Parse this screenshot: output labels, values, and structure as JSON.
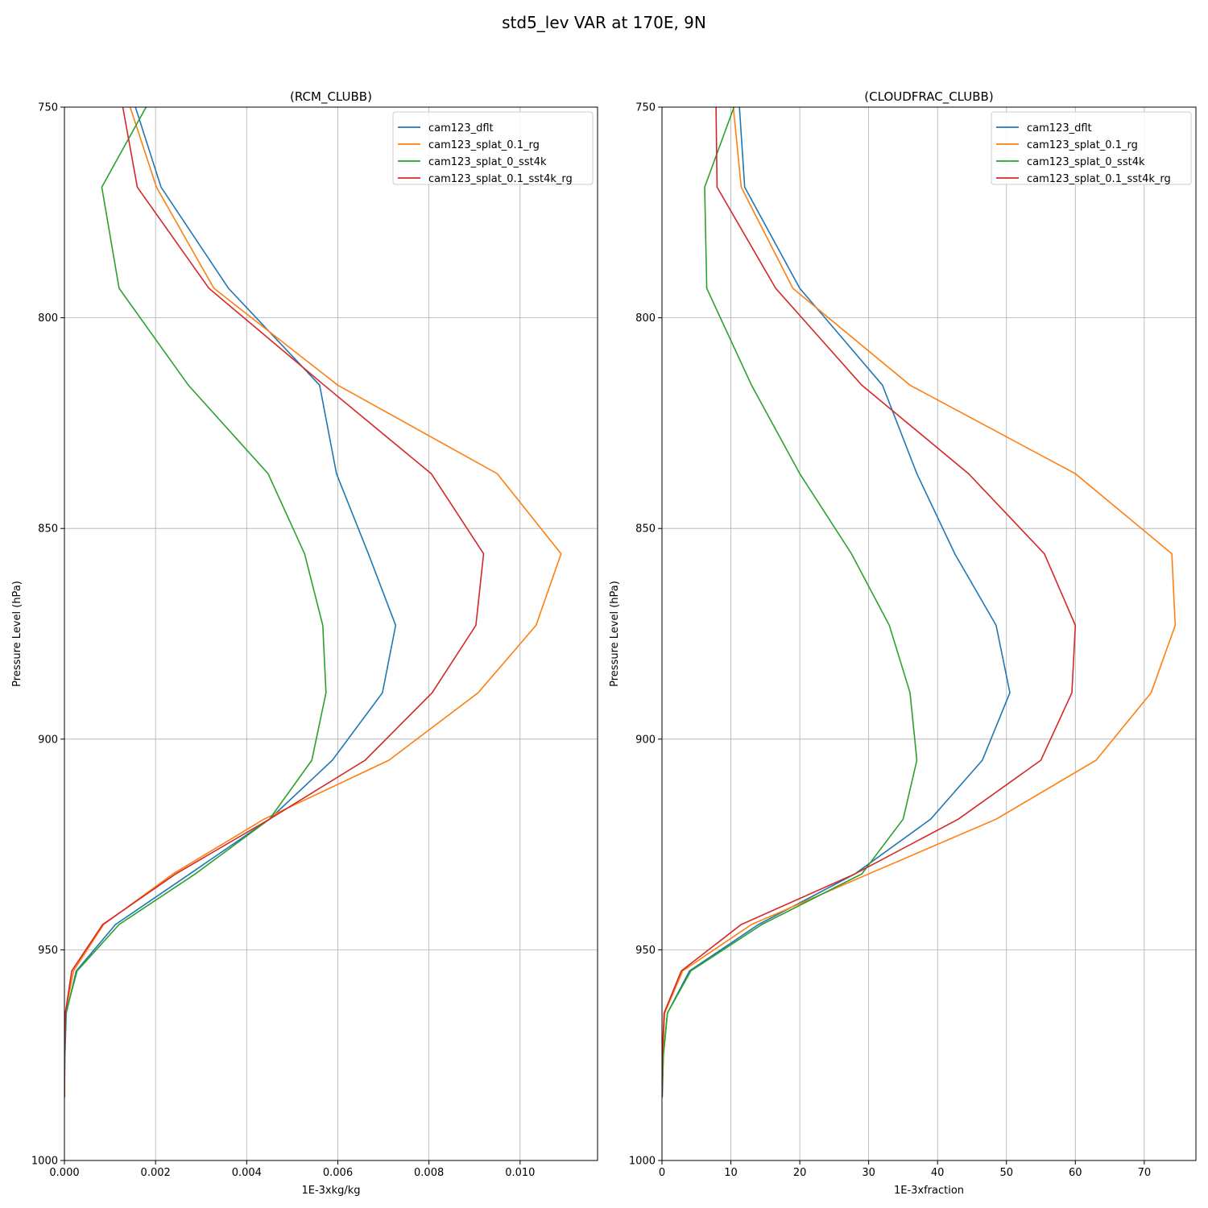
{
  "title": "std5_lev VAR at 170E, 9N",
  "series_names": [
    "cam123_dflt",
    "cam123_splat_0.1_rg",
    "cam123_splat_0_sst4k",
    "cam123_splat_0.1_sst4k_rg"
  ],
  "series_colors": [
    "#1f77b4",
    "#ff7f0e",
    "#2ca02c",
    "#d62728"
  ],
  "chart_data": [
    {
      "type": "line",
      "title": "(RCM_CLUBB)",
      "xlabel": "1E-3xkg/kg",
      "ylabel": "Pressure Level (hPa)",
      "xlim": [
        0,
        0.0117
      ],
      "ylim": [
        1000,
        750
      ],
      "xticks": [
        0,
        0.002,
        0.004,
        0.006,
        0.008,
        0.01
      ],
      "xtick_labels": [
        "0.000",
        "0.002",
        "0.004",
        "0.006",
        "0.008",
        "0.010"
      ],
      "yticks": [
        750,
        800,
        850,
        900,
        950,
        1000
      ],
      "ytick_labels": [
        "750",
        "800",
        "850",
        "900",
        "950",
        "1000"
      ],
      "grid": true,
      "legend_position": "upper right",
      "levels": [
        744,
        769,
        793,
        816,
        837,
        856,
        873,
        889,
        905,
        919,
        932,
        944,
        955,
        965,
        975,
        985
      ],
      "series": [
        {
          "name": "cam123_dflt",
          "x": [
            0.00138,
            0.00212,
            0.0036,
            0.0056,
            0.00597,
            0.00667,
            0.00727,
            0.00698,
            0.00588,
            0.0045,
            0.00275,
            0.00112,
            0.00026,
            4e-05,
            1e-05,
            0.0
          ]
        },
        {
          "name": "cam123_splat_0.1_rg",
          "x": [
            0.00126,
            0.00202,
            0.00328,
            0.006,
            0.0095,
            0.0109,
            0.01035,
            0.00908,
            0.00712,
            0.00438,
            0.00238,
            0.00086,
            0.0002,
            2e-05,
            0.0,
            0.0
          ]
        },
        {
          "name": "cam123_splat_0_sst4k",
          "x": [
            0.0021,
            0.00082,
            0.0012,
            0.00272,
            0.00447,
            0.00527,
            0.00567,
            0.00574,
            0.00543,
            0.0045,
            0.00287,
            0.0012,
            0.00028,
            3e-05,
            0.0,
            0.0
          ]
        },
        {
          "name": "cam123_splat_0.1_sst4k_rg",
          "x": [
            0.00118,
            0.0016,
            0.00317,
            0.0057,
            0.00805,
            0.0092,
            0.00903,
            0.00807,
            0.0066,
            0.0045,
            0.00244,
            0.00084,
            0.00016,
            2e-05,
            0.0,
            0.0
          ]
        }
      ]
    },
    {
      "type": "line",
      "title": "(CLOUDFRAC_CLUBB)",
      "xlabel": "1E-3xfraction",
      "ylabel": "Pressure Level (hPa)",
      "xlim": [
        0,
        77.5
      ],
      "ylim": [
        1000,
        750
      ],
      "xticks": [
        0,
        10,
        20,
        30,
        40,
        50,
        60,
        70
      ],
      "xtick_labels": [
        "0",
        "10",
        "20",
        "30",
        "40",
        "50",
        "60",
        "70"
      ],
      "yticks": [
        750,
        800,
        850,
        900,
        950,
        1000
      ],
      "ytick_labels": [
        "750",
        "800",
        "850",
        "900",
        "950",
        "1000"
      ],
      "grid": true,
      "legend_position": "upper right",
      "levels": [
        744,
        769,
        793,
        816,
        837,
        856,
        873,
        889,
        905,
        919,
        932,
        944,
        955,
        965,
        975,
        985
      ],
      "series": [
        {
          "name": "cam123_dflt",
          "x": [
            11.0,
            12.0,
            20.0,
            32.0,
            37.0,
            42.5,
            48.5,
            50.5,
            46.5,
            39.0,
            28.0,
            14.0,
            4.0,
            0.8,
            0.2,
            0.05
          ]
        },
        {
          "name": "cam123_splat_0.1_rg",
          "x": [
            10.0,
            11.5,
            19.0,
            36.0,
            60.0,
            74.0,
            74.5,
            71.0,
            63.0,
            48.5,
            30.0,
            13.0,
            3.0,
            0.4,
            0.1,
            0.0
          ]
        },
        {
          "name": "cam123_splat_0_sst4k",
          "x": [
            11.8,
            6.2,
            6.5,
            13.0,
            20.0,
            27.5,
            33.0,
            36.0,
            37.0,
            35.0,
            29.0,
            14.5,
            4.2,
            0.8,
            0.2,
            0.0
          ]
        },
        {
          "name": "cam123_splat_0.1_sst4k_rg",
          "x": [
            7.8,
            8.0,
            16.5,
            29.0,
            44.5,
            55.5,
            60.0,
            59.5,
            55.0,
            43.0,
            28.0,
            11.5,
            2.8,
            0.3,
            0.05,
            0.0
          ]
        }
      ]
    }
  ]
}
